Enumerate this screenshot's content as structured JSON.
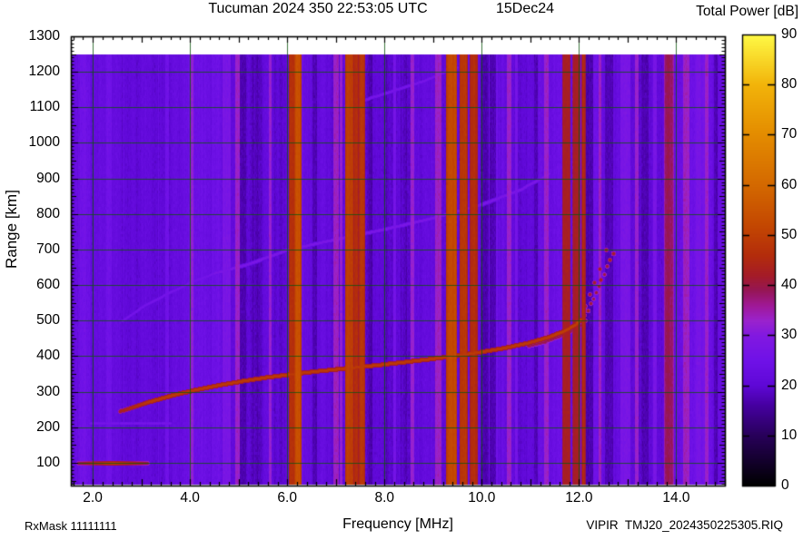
{
  "title": {
    "main": "Tucuman 2024 350 22:53:05 UTC",
    "date": "15Dec24"
  },
  "colorbar": {
    "title": "Total Power [dB]",
    "min": 0,
    "max": 90,
    "tick_values": [
      0,
      10,
      20,
      30,
      40,
      50,
      60,
      70,
      80,
      90
    ]
  },
  "axes": {
    "x": {
      "label": "Frequency [MHz]",
      "tick_labels": [
        "2.0",
        "4.0",
        "6.0",
        "8.0",
        "10.0",
        "12.0",
        "14.0"
      ],
      "tick_values": [
        2,
        4,
        6,
        8,
        10,
        12,
        14
      ],
      "range_mhz": [
        1.55,
        15.0
      ]
    },
    "y": {
      "label": "Range [km]",
      "tick_values": [
        100,
        200,
        300,
        400,
        500,
        600,
        700,
        800,
        900,
        1000,
        1100,
        1200,
        1300
      ],
      "range_km": [
        36,
        1300
      ]
    }
  },
  "footer": {
    "rx_mask": "RxMask 11111111",
    "instrument_file": "VIPIR  TMJ20_2024350225305.RIQ"
  },
  "chart_data": {
    "type": "heatmap",
    "title": "Tucuman 2024 350 22:53:05 UTC 15Dec24",
    "xlabel": "Frequency [MHz]",
    "ylabel": "Range [km]",
    "colorbar_label": "Total Power [dB]",
    "xlim": [
      1.55,
      15.0
    ],
    "ylim": [
      36,
      1300
    ],
    "colorbar_range_db": [
      0,
      90
    ],
    "data_extent": {
      "freq_mhz": [
        1.55,
        15.0
      ],
      "range_km": [
        38,
        1249
      ]
    },
    "background_power_db": 21,
    "grid": {
      "x_step_mhz": 2,
      "y_step_km": 100,
      "color": "dark-green"
    },
    "colormap_anchors_db_rgb": [
      [
        0,
        0,
        0,
        0
      ],
      [
        10,
        40,
        0,
        90
      ],
      [
        16,
        70,
        0,
        160
      ],
      [
        20,
        95,
        8,
        215
      ],
      [
        25,
        112,
        18,
        232
      ],
      [
        30,
        130,
        25,
        225
      ],
      [
        33,
        155,
        35,
        205
      ],
      [
        36,
        160,
        25,
        150
      ],
      [
        39,
        150,
        22,
        85
      ],
      [
        42,
        165,
        28,
        40
      ],
      [
        46,
        180,
        45,
        12
      ],
      [
        52,
        196,
        72,
        2
      ],
      [
        60,
        212,
        105,
        0
      ],
      [
        70,
        228,
        140,
        0
      ],
      [
        80,
        242,
        180,
        10
      ],
      [
        90,
        255,
        250,
        70
      ]
    ],
    "rfi_bands": [
      {
        "f0": 6.04,
        "f1": 6.14,
        "db": 47
      },
      {
        "f0": 6.16,
        "f1": 6.26,
        "db": 54
      },
      {
        "f0": 7.2,
        "f1": 7.34,
        "db": 50
      },
      {
        "f0": 7.36,
        "f1": 7.44,
        "db": 46
      },
      {
        "f0": 7.48,
        "f1": 7.57,
        "db": 48
      },
      {
        "f0": 9.28,
        "f1": 9.47,
        "db": 52
      },
      {
        "f0": 9.55,
        "f1": 9.68,
        "db": 48
      },
      {
        "f0": 9.76,
        "f1": 9.9,
        "db": 46
      },
      {
        "f0": 11.66,
        "f1": 11.8,
        "db": 43
      },
      {
        "f0": 11.88,
        "f1": 12.0,
        "db": 43
      },
      {
        "f0": 12.06,
        "f1": 12.11,
        "db": 45
      },
      {
        "f0": 13.76,
        "f1": 13.92,
        "db": 39
      }
    ],
    "background_bands": [
      {
        "f": 2.33,
        "w": 0.1,
        "db": 24.5
      },
      {
        "f": 3.52,
        "w": 0.07,
        "db": 25
      },
      {
        "f": 4.03,
        "w": 0.06,
        "db": 32
      },
      {
        "f": 4.75,
        "w": 0.15,
        "db": 27.5
      },
      {
        "f": 4.97,
        "w": 0.06,
        "db": 33
      },
      {
        "f": 5.08,
        "w": 0.12,
        "db": 17
      },
      {
        "f": 5.64,
        "w": 0.05,
        "db": 32.5
      },
      {
        "f": 6.55,
        "w": 0.08,
        "db": 17.5
      },
      {
        "f": 6.99,
        "w": 0.1,
        "db": 33.5
      },
      {
        "f": 7.1,
        "w": 0.05,
        "db": 32
      },
      {
        "f": 7.7,
        "w": 0.06,
        "db": 17
      },
      {
        "f": 8.2,
        "w": 0.05,
        "db": 26.5
      },
      {
        "f": 8.57,
        "w": 0.06,
        "db": 32.5
      },
      {
        "f": 9.1,
        "w": 0.12,
        "db": 33.5
      },
      {
        "f": 10.05,
        "w": 0.15,
        "db": 17
      },
      {
        "f": 10.22,
        "w": 0.12,
        "db": 17.5
      },
      {
        "f": 10.55,
        "w": 0.07,
        "db": 33
      },
      {
        "f": 10.7,
        "w": 0.04,
        "db": 26.5
      },
      {
        "f": 11.1,
        "w": 0.05,
        "db": 17.5
      },
      {
        "f": 11.32,
        "w": 0.06,
        "db": 33
      },
      {
        "f": 12.2,
        "w": 0.15,
        "db": 17
      },
      {
        "f": 12.42,
        "w": 0.05,
        "db": 33.5
      },
      {
        "f": 12.6,
        "w": 0.15,
        "db": 17.5
      },
      {
        "f": 12.95,
        "w": 0.18,
        "db": 27.5
      },
      {
        "f": 13.18,
        "w": 0.05,
        "db": 33
      },
      {
        "f": 13.35,
        "w": 0.12,
        "db": 17.5
      },
      {
        "f": 13.55,
        "w": 0.05,
        "db": 27
      },
      {
        "f": 14.2,
        "w": 0.12,
        "db": 33.5
      },
      {
        "f": 14.45,
        "w": 0.1,
        "db": 27
      },
      {
        "f": 14.62,
        "w": 0.06,
        "db": 33
      },
      {
        "f": 14.8,
        "w": 0.06,
        "db": 17.5
      }
    ],
    "echo_traces": {
      "f_trace_o_mode": {
        "db": 49,
        "points_mhz_km": [
          [
            2.55,
            245
          ],
          [
            3.0,
            266
          ],
          [
            3.5,
            286
          ],
          [
            4.0,
            303
          ],
          [
            4.5,
            317
          ],
          [
            5.0,
            329
          ],
          [
            5.5,
            340
          ],
          [
            6.0,
            349
          ],
          [
            6.5,
            357
          ],
          [
            7.0,
            364
          ],
          [
            7.5,
            371
          ],
          [
            8.0,
            378
          ],
          [
            8.5,
            386
          ],
          [
            9.0,
            394
          ],
          [
            9.5,
            403
          ],
          [
            10.0,
            413
          ],
          [
            10.5,
            425
          ],
          [
            11.0,
            440
          ],
          [
            11.4,
            456
          ],
          [
            11.7,
            472
          ],
          [
            11.9,
            488
          ],
          [
            12.05,
            505
          ]
        ]
      },
      "f_trace_x_branch": {
        "db": 40,
        "points_mhz_km": [
          [
            10.95,
            429
          ],
          [
            11.3,
            441
          ],
          [
            11.6,
            457
          ],
          [
            11.85,
            472
          ],
          [
            12.05,
            489
          ],
          [
            12.15,
            502
          ]
        ]
      },
      "spread_tail_dots": {
        "db": 43,
        "points_mhz_km": [
          [
            12.1,
            516
          ],
          [
            12.17,
            530
          ],
          [
            12.12,
            541
          ],
          [
            12.23,
            548
          ],
          [
            12.29,
            562
          ],
          [
            12.21,
            574
          ],
          [
            12.34,
            580
          ],
          [
            12.4,
            597
          ],
          [
            12.31,
            607
          ],
          [
            12.45,
            615
          ],
          [
            12.52,
            632
          ],
          [
            12.43,
            647
          ],
          [
            12.57,
            655
          ],
          [
            12.63,
            672
          ],
          [
            12.7,
            690
          ],
          [
            12.55,
            700
          ]
        ]
      },
      "e_region_echo": {
        "db": 50,
        "range_km": 100,
        "freq_mhz": [
          1.7,
          3.12
        ]
      },
      "e_second_hop": {
        "db": 27,
        "range_km": 211,
        "freq_mhz": [
          1.95,
          3.6
        ]
      },
      "f_second_hop": {
        "db": 28.2,
        "points_mhz_km": [
          [
            2.6,
            500
          ],
          [
            3.0,
            538
          ],
          [
            3.5,
            574
          ],
          [
            4.0,
            608
          ],
          [
            4.5,
            634
          ],
          [
            5.2,
            660
          ],
          [
            6.0,
            700
          ],
          [
            7.0,
            730
          ],
          [
            8.0,
            758
          ],
          [
            9.0,
            790
          ],
          [
            10.0,
            828
          ],
          [
            10.8,
            870
          ],
          [
            11.4,
            915
          ]
        ]
      },
      "f_third_hop": {
        "db": 27.5,
        "points_mhz_km": [
          [
            7.2,
            1105
          ],
          [
            8.0,
            1140
          ],
          [
            8.8,
            1175
          ],
          [
            9.5,
            1215
          ]
        ]
      }
    }
  }
}
